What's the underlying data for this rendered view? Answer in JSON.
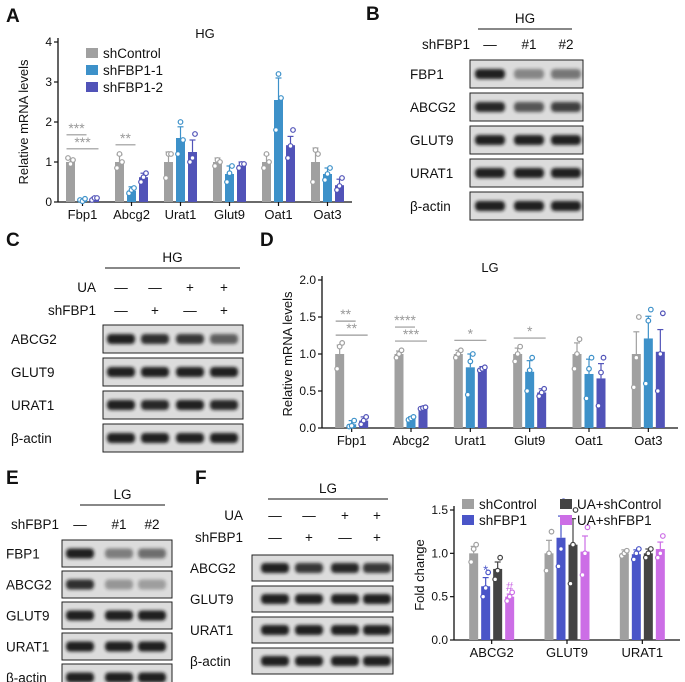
{
  "panel_labels": [
    "A",
    "B",
    "C",
    "D",
    "E",
    "F"
  ],
  "chart_data": [
    {
      "id": "A",
      "type": "bar",
      "title": "HG",
      "ylabel": "Relative mRNA levels",
      "ylim": [
        0,
        4
      ],
      "yticks": [
        0,
        1,
        2,
        3,
        4
      ],
      "categories": [
        "Fbp1",
        "Abcg2",
        "Urat1",
        "Glut9",
        "Oat1",
        "Oat3"
      ],
      "series": [
        {
          "name": "shControl",
          "color": "#a0a0a0",
          "values": [
            1.0,
            1.0,
            1.0,
            1.0,
            1.0,
            1.0
          ],
          "errors": [
            0.08,
            0.18,
            0.25,
            0.1,
            0.18,
            0.35
          ],
          "points": [
            [
              1.1,
              0.95,
              1.05
            ],
            [
              0.85,
              1.2,
              1.0
            ],
            [
              0.6,
              1.2,
              1.2
            ],
            [
              0.9,
              1.05,
              1.0
            ],
            [
              0.85,
              1.2,
              1.0
            ],
            [
              0.5,
              1.3,
              1.2
            ]
          ]
        },
        {
          "name": "shFBP1-1",
          "color": "#3d91c9",
          "values": [
            0.05,
            0.28,
            1.6,
            0.7,
            2.55,
            0.7
          ],
          "errors": [
            0.03,
            0.1,
            0.28,
            0.2,
            0.55,
            0.15
          ],
          "points": [
            [
              0.05,
              0.02,
              0.08
            ],
            [
              0.22,
              0.3,
              0.35
            ],
            [
              1.2,
              2.0,
              1.55
            ],
            [
              0.5,
              0.72,
              0.9
            ],
            [
              1.8,
              3.2,
              2.6
            ],
            [
              0.55,
              0.7,
              0.85
            ]
          ]
        },
        {
          "name": "shFBP1-2",
          "color": "#5153b8",
          "values": [
            0.08,
            0.62,
            1.25,
            0.92,
            1.42,
            0.42
          ],
          "errors": [
            0.04,
            0.1,
            0.3,
            0.08,
            0.22,
            0.15
          ],
          "points": [
            [
              0.05,
              0.1,
              0.1
            ],
            [
              0.5,
              0.62,
              0.72
            ],
            [
              1.0,
              1.1,
              1.7
            ],
            [
              0.85,
              0.95,
              0.95
            ],
            [
              1.1,
              1.4,
              1.8
            ],
            [
              0.3,
              0.4,
              0.6
            ]
          ]
        }
      ],
      "significance": [
        {
          "label": "***",
          "cat": 0,
          "from": 0,
          "to": 2
        },
        {
          "label": "***",
          "cat": 0,
          "from": 0,
          "to": 1
        },
        {
          "label": "**",
          "cat": 1,
          "from": 0,
          "to": 1
        }
      ],
      "legend_position": "top-left"
    },
    {
      "id": "D",
      "type": "bar",
      "title": "LG",
      "ylabel": "Relative mRNA levels",
      "ylim": [
        0,
        2.0
      ],
      "yticks": [
        "0.0",
        "0.5",
        "1.0",
        "1.5",
        "2.0"
      ],
      "categories": [
        "Fbp1",
        "Abcg2",
        "Urat1",
        "Glut9",
        "Oat1",
        "Oat3"
      ],
      "series": [
        {
          "name": "shControl",
          "color": "#a0a0a0",
          "values": [
            1.0,
            1.0,
            1.0,
            1.0,
            1.0,
            1.0
          ],
          "errors": [
            0.12,
            0.04,
            0.05,
            0.08,
            0.15,
            0.3
          ],
          "points": [
            [
              0.8,
              1.1,
              1.15
            ],
            [
              0.95,
              1.0,
              1.05
            ],
            [
              0.95,
              1.0,
              1.05
            ],
            [
              0.9,
              1.0,
              1.1
            ],
            [
              0.8,
              1.0,
              1.2
            ],
            [
              0.55,
              0.95,
              1.5
            ]
          ]
        },
        {
          "name": "shFBP1-1",
          "color": "#3d91c9",
          "values": [
            0.05,
            0.13,
            0.82,
            0.76,
            0.73,
            1.21
          ],
          "errors": [
            0.05,
            0.02,
            0.18,
            0.15,
            0.2,
            0.3
          ],
          "points": [
            [
              0.02,
              0.03,
              0.1
            ],
            [
              0.11,
              0.13,
              0.15
            ],
            [
              0.45,
              0.9,
              1.0
            ],
            [
              0.5,
              0.78,
              0.95
            ],
            [
              0.4,
              0.8,
              0.95
            ],
            [
              0.6,
              1.45,
              1.6
            ]
          ]
        },
        {
          "name": "shFBP1-2",
          "color": "#5153b8",
          "values": [
            0.1,
            0.27,
            0.8,
            0.48,
            0.67,
            1.03
          ],
          "errors": [
            0.05,
            0.02,
            0.03,
            0.05,
            0.2,
            0.3
          ],
          "points": [
            [
              0.05,
              0.1,
              0.15
            ],
            [
              0.26,
              0.27,
              0.28
            ],
            [
              0.78,
              0.8,
              0.82
            ],
            [
              0.43,
              0.48,
              0.53
            ],
            [
              0.3,
              0.75,
              0.95
            ],
            [
              0.5,
              1.0,
              1.55
            ]
          ]
        }
      ],
      "significance": [
        {
          "label": "**",
          "cat": 0,
          "from": 0,
          "to": 2
        },
        {
          "label": "**",
          "cat": 0,
          "from": 0,
          "to": 1
        },
        {
          "label": "***",
          "cat": 1,
          "from": 0,
          "to": 2
        },
        {
          "label": "****",
          "cat": 1,
          "from": 0,
          "to": 1
        },
        {
          "label": "*",
          "cat": 2,
          "from": 0,
          "to": 2
        },
        {
          "label": "*",
          "cat": 3,
          "from": 0,
          "to": 2
        }
      ]
    },
    {
      "id": "F",
      "type": "bar",
      "ylabel": "Fold change",
      "ylim": [
        0,
        1.5
      ],
      "yticks": [
        "0.0",
        "0.5",
        "1.0",
        "1.5"
      ],
      "categories": [
        "ABCG2",
        "GLUT9",
        "URAT1"
      ],
      "series": [
        {
          "name": "shControl",
          "color": "#a0a0a0",
          "values": [
            1.0,
            1.0,
            1.0
          ],
          "errors": [
            0.08,
            0.15,
            0.04
          ],
          "points": [
            [
              0.9,
              1.05,
              1.1
            ],
            [
              0.8,
              1.0,
              1.25
            ],
            [
              0.97,
              1.0,
              1.03
            ]
          ]
        },
        {
          "name": "shFBP1",
          "color": "#4a55c8",
          "values": [
            0.62,
            1.18,
            0.99
          ],
          "errors": [
            0.1,
            0.25,
            0.05
          ],
          "points": [
            [
              0.5,
              0.6,
              0.78
            ],
            [
              0.85,
              1.05,
              1.6
            ],
            [
              0.93,
              1.0,
              1.05
            ]
          ]
        },
        {
          "name": "UA+shControl",
          "color": "#444444",
          "values": [
            0.82,
            1.1,
            1.0
          ],
          "errors": [
            0.08,
            0.3,
            0.05
          ],
          "points": [
            [
              0.7,
              0.8,
              0.95
            ],
            [
              0.65,
              1.1,
              1.5
            ],
            [
              0.95,
              1.0,
              1.05
            ]
          ]
        },
        {
          "name": "UA+shFBP1",
          "color": "#cc6ee6",
          "values": [
            0.5,
            1.02,
            1.05
          ],
          "errors": [
            0.03,
            0.18,
            0.08
          ],
          "points": [
            [
              0.45,
              0.5,
              0.55
            ],
            [
              0.75,
              1.0,
              1.3
            ],
            [
              0.95,
              1.0,
              1.2
            ]
          ]
        }
      ],
      "annotations": [
        {
          "label": "*",
          "cat": 0,
          "series": 1
        },
        {
          "label": "#",
          "cat": 0,
          "series": 3
        }
      ],
      "legend_position": "top"
    }
  ],
  "blots": {
    "B": {
      "condition": "HG",
      "header_label": "shFBP1",
      "lanes": [
        "—",
        "#1",
        "#2"
      ],
      "rows": [
        "FBP1",
        "ABCG2",
        "GLUT9",
        "URAT1",
        "β-actin"
      ]
    },
    "C": {
      "condition": "HG",
      "header_rows": [
        {
          "label": "UA",
          "values": [
            "—",
            "—",
            "+",
            "+"
          ]
        },
        {
          "label": "shFBP1",
          "values": [
            "—",
            "+",
            "—",
            "+"
          ]
        }
      ],
      "rows": [
        "ABCG2",
        "GLUT9",
        "URAT1",
        "β-actin"
      ]
    },
    "E": {
      "condition": "LG",
      "header_label": "shFBP1",
      "lanes": [
        "—",
        "#1",
        "#2"
      ],
      "rows": [
        "FBP1",
        "ABCG2",
        "GLUT9",
        "URAT1",
        "β-actin"
      ]
    },
    "F": {
      "condition": "LG",
      "header_rows": [
        {
          "label": "UA",
          "values": [
            "—",
            "—",
            "+",
            "+"
          ]
        },
        {
          "label": "shFBP1",
          "values": [
            "—",
            "+",
            "—",
            "+"
          ]
        }
      ],
      "rows": [
        "ABCG2",
        "GLUT9",
        "URAT1",
        "β-actin"
      ]
    }
  }
}
